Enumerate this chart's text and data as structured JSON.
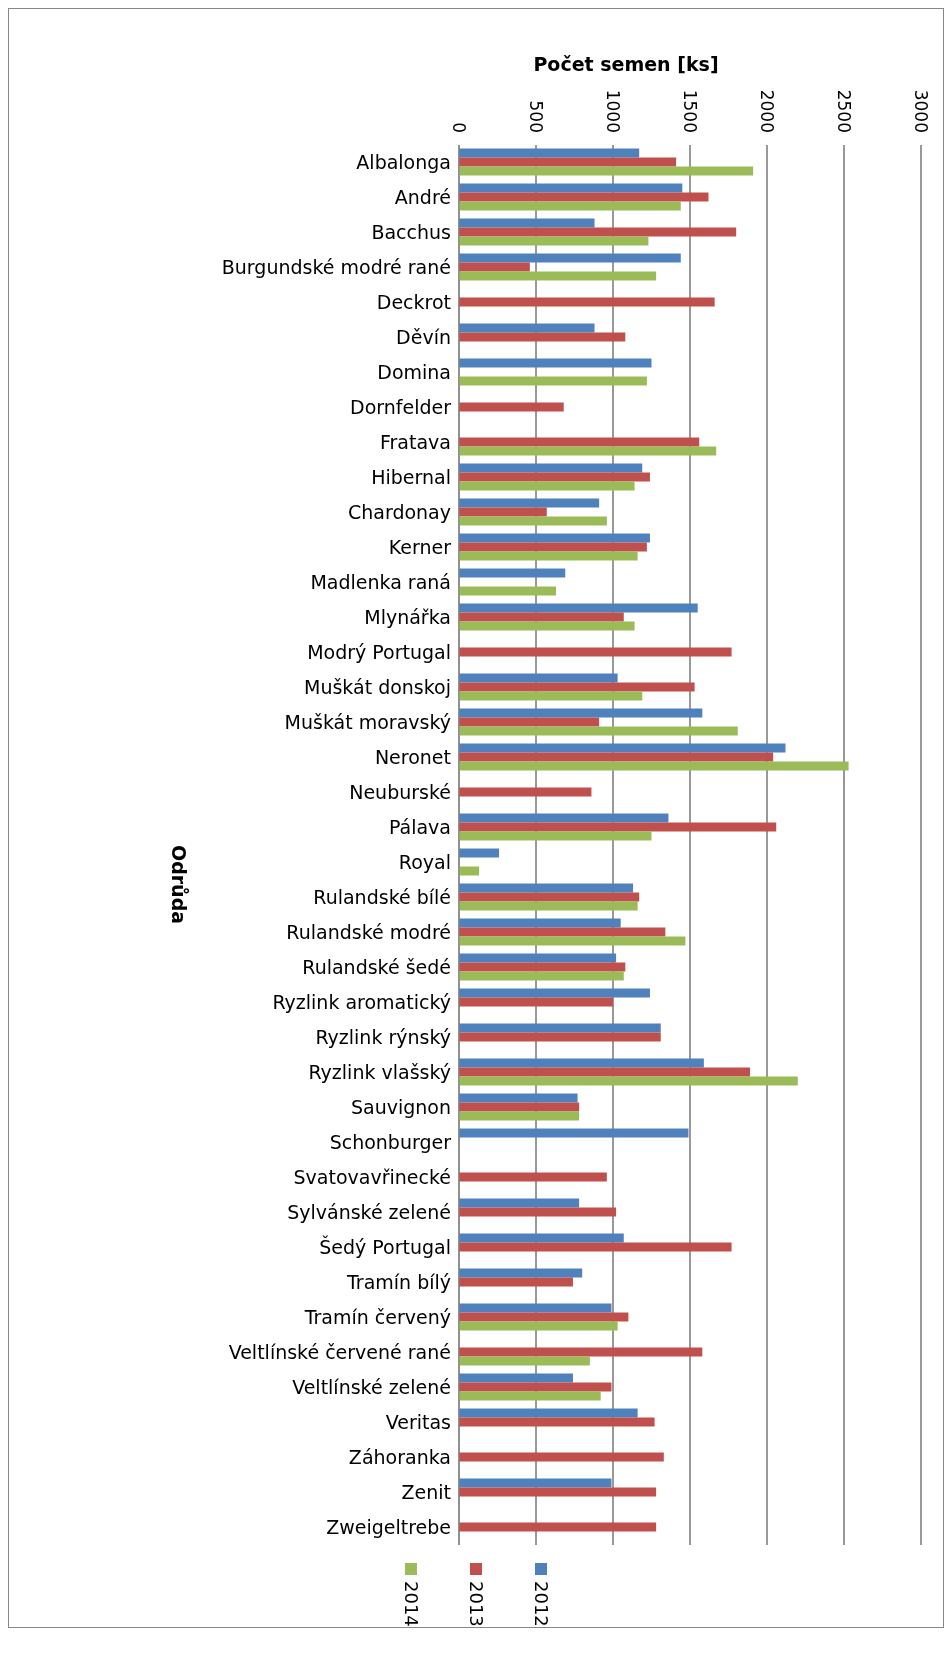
{
  "chart_data": {
    "type": "bar",
    "orientation": "horizontal",
    "xlabel": "Počet semen [ks]",
    "ylabel": "Odrůda",
    "categories": [
      "Albalonga",
      "André",
      "Bacchus",
      "Burgundské modré rané",
      "Deckrot",
      "Děvín",
      "Domina",
      "Dornfelder",
      "Fratava",
      "Hibernal",
      "Chardonay",
      "Kerner",
      "Madlenka raná",
      "Mlynářka",
      "Modrý Portugal",
      "Muškát donskoj",
      "Muškát moravský",
      "Neronet",
      "Neuburské",
      "Pálava",
      "Royal",
      "Rulandské bílé",
      "Rulandské modré",
      "Rulandské šedé",
      "Ryzlink aromatický",
      "Ryzlink rýnský",
      "Ryzlink vlašský",
      "Sauvignon",
      "Schonburger",
      "Svatovavřinecké",
      "Sylvánské zelené",
      "Šedý Portugal",
      "Tramín bílý",
      "Tramín červený",
      "Veltlínské červené rané",
      "Veltlínské zelené",
      "Veritas",
      "Záhoranka",
      "Zenit",
      "Zweigeltrebe"
    ],
    "series": [
      {
        "name": "2012",
        "color": "#4f81bd",
        "values": [
          1170,
          1450,
          880,
          1440,
          null,
          880,
          1250,
          null,
          null,
          1190,
          910,
          1240,
          690,
          1550,
          null,
          1030,
          1580,
          2120,
          null,
          1360,
          260,
          1130,
          1050,
          1020,
          1240,
          1310,
          1590,
          770,
          1490,
          null,
          780,
          1070,
          800,
          990,
          null,
          740,
          1160,
          null,
          990,
          null
        ]
      },
      {
        "name": "2013",
        "color": "#c0504d",
        "values": [
          1410,
          1620,
          1800,
          460,
          1660,
          1080,
          null,
          680,
          1560,
          1240,
          570,
          1220,
          null,
          1070,
          1770,
          1530,
          910,
          2040,
          860,
          2060,
          null,
          1170,
          1340,
          1080,
          1000,
          1310,
          1890,
          780,
          null,
          960,
          1020,
          1770,
          740,
          1100,
          1580,
          990,
          1270,
          1330,
          1280,
          1280
        ]
      },
      {
        "name": "2014",
        "color": "#9bbb59",
        "values": [
          1910,
          1440,
          1230,
          1280,
          null,
          null,
          1220,
          null,
          1670,
          1140,
          960,
          1160,
          630,
          1140,
          null,
          1190,
          1810,
          2530,
          null,
          1250,
          130,
          1160,
          1470,
          1070,
          null,
          null,
          2200,
          780,
          null,
          null,
          null,
          null,
          null,
          1030,
          850,
          920,
          null,
          null,
          null,
          null
        ]
      }
    ],
    "xlim": [
      0,
      3000
    ],
    "xticks": [
      0,
      500,
      1000,
      1500,
      2000,
      2500,
      3000
    ],
    "grid": "x",
    "legend": "bottom"
  }
}
